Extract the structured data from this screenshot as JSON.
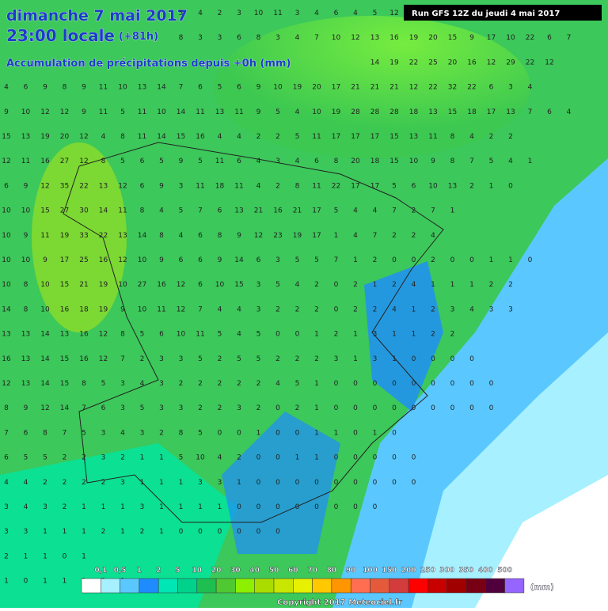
{
  "header": {
    "date": "dimanche 7 mai 2017",
    "time": "23:00 locale",
    "offset": "(+81h)",
    "subtitle": "Accumulation de précipitations depuis +0h (mm)",
    "run": "Run GFS 12Z du jeudi 4 mai 2017"
  },
  "grid": {
    "rows": [
      [
        null,
        null,
        null,
        null,
        null,
        null,
        null,
        null,
        null,
        5,
        4,
        2,
        3,
        10,
        11,
        3,
        4,
        6,
        4,
        5,
        12
      ],
      [
        null,
        null,
        null,
        null,
        null,
        null,
        null,
        null,
        null,
        8,
        3,
        3,
        6,
        8,
        3,
        4,
        7,
        10,
        12,
        13,
        16,
        19,
        20,
        15,
        9,
        17,
        10,
        22,
        6,
        7
      ],
      [
        null,
        null,
        null,
        null,
        null,
        null,
        null,
        null,
        null,
        null,
        null,
        null,
        null,
        null,
        null,
        null,
        null,
        null,
        null,
        14,
        19,
        22,
        25,
        20,
        16,
        12,
        29,
        22,
        12
      ],
      [
        4,
        6,
        9,
        8,
        9,
        11,
        10,
        13,
        14,
        7,
        6,
        5,
        6,
        9,
        10,
        19,
        20,
        17,
        21,
        21,
        21,
        12,
        22,
        32,
        22,
        6,
        3,
        4
      ],
      [
        9,
        10,
        12,
        12,
        9,
        11,
        5,
        11,
        10,
        14,
        11,
        13,
        11,
        9,
        5,
        4,
        10,
        19,
        28,
        28,
        28,
        18,
        13,
        15,
        18,
        17,
        13,
        7,
        6,
        4
      ],
      [
        15,
        13,
        19,
        20,
        12,
        4,
        8,
        11,
        14,
        15,
        16,
        4,
        4,
        2,
        2,
        5,
        11,
        17,
        17,
        17,
        15,
        13,
        11,
        8,
        4,
        2,
        2
      ],
      [
        12,
        11,
        16,
        27,
        12,
        8,
        5,
        6,
        5,
        9,
        5,
        11,
        6,
        4,
        3,
        4,
        6,
        8,
        20,
        18,
        15,
        10,
        9,
        8,
        7,
        5,
        4,
        1
      ],
      [
        6,
        9,
        12,
        35,
        22,
        13,
        12,
        6,
        9,
        3,
        11,
        18,
        11,
        4,
        2,
        8,
        11,
        22,
        17,
        17,
        5,
        6,
        10,
        13,
        2,
        1,
        0
      ],
      [
        10,
        10,
        15,
        27,
        30,
        14,
        11,
        8,
        4,
        5,
        7,
        6,
        13,
        21,
        16,
        21,
        17,
        5,
        4,
        4,
        7,
        2,
        7,
        1
      ],
      [
        10,
        9,
        11,
        19,
        33,
        22,
        13,
        14,
        8,
        4,
        6,
        8,
        9,
        12,
        23,
        19,
        17,
        1,
        4,
        7,
        2,
        2,
        4
      ],
      [
        10,
        10,
        9,
        17,
        25,
        16,
        12,
        10,
        9,
        6,
        6,
        9,
        14,
        6,
        3,
        5,
        5,
        7,
        1,
        2,
        0,
        0,
        2,
        0,
        0,
        1,
        1,
        0
      ],
      [
        10,
        8,
        10,
        15,
        21,
        19,
        10,
        27,
        16,
        12,
        6,
        10,
        15,
        3,
        5,
        4,
        2,
        0,
        2,
        1,
        2,
        4,
        1,
        1,
        1,
        2,
        2
      ],
      [
        14,
        8,
        10,
        16,
        18,
        19,
        9,
        10,
        11,
        12,
        7,
        4,
        4,
        3,
        2,
        2,
        2,
        0,
        2,
        2,
        4,
        1,
        2,
        3,
        4,
        3,
        3
      ],
      [
        13,
        13,
        14,
        13,
        16,
        12,
        8,
        5,
        6,
        10,
        11,
        5,
        4,
        5,
        0,
        0,
        1,
        2,
        1,
        3,
        1,
        1,
        2,
        2
      ],
      [
        16,
        13,
        14,
        15,
        16,
        12,
        7,
        2,
        3,
        3,
        5,
        2,
        5,
        5,
        2,
        2,
        2,
        3,
        1,
        3,
        1,
        0,
        0,
        0,
        0
      ],
      [
        12,
        13,
        14,
        15,
        8,
        5,
        3,
        4,
        3,
        2,
        2,
        2,
        2,
        2,
        4,
        5,
        1,
        0,
        0,
        0,
        0,
        0,
        0,
        0,
        0,
        0
      ],
      [
        8,
        9,
        12,
        14,
        7,
        6,
        3,
        5,
        3,
        3,
        2,
        2,
        3,
        2,
        0,
        2,
        1,
        0,
        0,
        0,
        0,
        0,
        0,
        0,
        0,
        0
      ],
      [
        7,
        6,
        8,
        7,
        5,
        3,
        4,
        3,
        2,
        8,
        5,
        0,
        0,
        1,
        0,
        0,
        1,
        1,
        0,
        1,
        0
      ],
      [
        6,
        5,
        5,
        2,
        2,
        3,
        2,
        1,
        1,
        5,
        10,
        4,
        2,
        0,
        0,
        1,
        1,
        0,
        0,
        0,
        0,
        0
      ],
      [
        4,
        4,
        2,
        2,
        2,
        2,
        3,
        1,
        1,
        1,
        3,
        3,
        1,
        0,
        0,
        0,
        0,
        0,
        0,
        0,
        0,
        0
      ],
      [
        3,
        4,
        3,
        2,
        1,
        1,
        1,
        3,
        1,
        1,
        1,
        1,
        0,
        0,
        0,
        0,
        0,
        0,
        0,
        0
      ],
      [
        3,
        3,
        1,
        1,
        1,
        2,
        1,
        2,
        1,
        0,
        0,
        0,
        0,
        0,
        0
      ],
      [
        2,
        1,
        1,
        0,
        1
      ],
      [
        1,
        0,
        1,
        1,
        1,
        2,
        1
      ]
    ]
  },
  "legend": {
    "labels": [
      "0,1",
      "0,5",
      "1",
      "2",
      "5",
      "10",
      "20",
      "30",
      "40",
      "50",
      "60",
      "70",
      "80",
      "90",
      "100",
      "150",
      "200",
      "250",
      "300",
      "350",
      "400",
      "500"
    ],
    "colors": [
      "#ffffff",
      "#a6f0ff",
      "#5ac8ff",
      "#1e8cff",
      "#00e6b4",
      "#00d28c",
      "#1ebe50",
      "#50c832",
      "#8cf000",
      "#aadc00",
      "#c8e600",
      "#e6f000",
      "#ffc800",
      "#ff9600",
      "#ff6e50",
      "#e65a3c",
      "#d23c3c",
      "#ff0000",
      "#c80000",
      "#a00000",
      "#780014",
      "#50003c",
      "#9664ff"
    ],
    "unit": "(mm)"
  },
  "footer": {
    "copyright": "Copyright 2017 Meteociel.fr"
  }
}
